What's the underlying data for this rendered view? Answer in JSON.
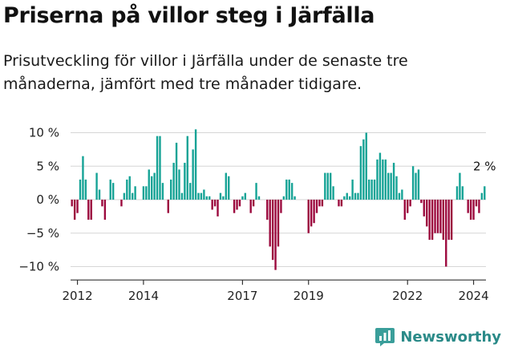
{
  "header": {
    "title": "Priserna på villor steg i Järfälla",
    "subtitle": "Prisutveckling för villor i Järfälla under de senaste tre månaderna, jämfört med tre månader tidigare."
  },
  "brand": {
    "name": "Newsworthy",
    "icon": "bar-chart-logo-icon"
  },
  "colors": {
    "positive": "#16a396",
    "negative": "#9c0a3e",
    "grid": "#d6d6d6",
    "axis": "#333333",
    "logo": "#2a8a88"
  },
  "chart_data": {
    "type": "bar",
    "x_start": "2011-11",
    "x_step": "month",
    "xticks": [
      "2012",
      "2014",
      "2017",
      "2019",
      "2022",
      "2024"
    ],
    "yticks": [
      "10 %",
      "5 %",
      "0 %",
      "−5 %",
      "−10 %"
    ],
    "ylim": [
      -12,
      11
    ],
    "ylabel": "",
    "xlabel": "",
    "annotation": "2 %",
    "grid": true,
    "values": [
      -1,
      -3,
      -2,
      3,
      6.5,
      3,
      -3,
      -3,
      0,
      4,
      1.5,
      -1,
      -3,
      0,
      3,
      2.5,
      0,
      0,
      -1,
      1,
      3,
      3.5,
      1,
      2,
      0,
      0,
      2,
      2,
      4.5,
      3.5,
      4,
      9.5,
      9.5,
      2.5,
      0,
      -2,
      3,
      5.5,
      8.5,
      4.5,
      1,
      5.5,
      9.5,
      2.5,
      7.5,
      10.5,
      1,
      1,
      1.5,
      0.5,
      0.5,
      -1.5,
      -1,
      -2.5,
      1,
      0.5,
      4,
      3.5,
      0,
      -2,
      -1.5,
      -1,
      0.5,
      1,
      0,
      -2,
      -1,
      2.5,
      0.5,
      0,
      0,
      -3,
      -7,
      -9,
      -10.5,
      -7,
      -2,
      0.5,
      3,
      3,
      2.5,
      0.5,
      0,
      0,
      0,
      0,
      -5,
      -4,
      -3.5,
      -2,
      -1,
      -1,
      4,
      4,
      4,
      2,
      0,
      -1,
      -1,
      0.5,
      1,
      0.5,
      3,
      1,
      1,
      8,
      9,
      10,
      3,
      3,
      3,
      6,
      7,
      6,
      6,
      4,
      4,
      5.5,
      3.5,
      1,
      1.5,
      -3,
      -2,
      -1,
      5,
      4,
      4.5,
      -0.5,
      -2.5,
      -4,
      -6,
      -6,
      -5,
      -5,
      -5,
      -6,
      -10,
      -6,
      -6,
      0,
      2,
      4,
      2,
      0,
      -2,
      -3,
      -3,
      -1,
      -2,
      1,
      2
    ]
  }
}
